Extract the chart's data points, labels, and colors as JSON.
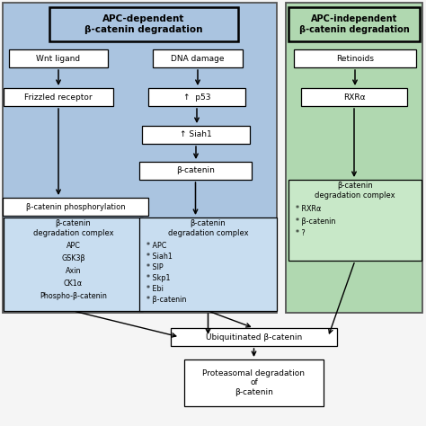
{
  "bg_color": "#f5f5f5",
  "blue_bg": "#aac4e0",
  "green_bg": "#b0d8b0",
  "white_box": "#ffffff",
  "blue_inner": "#c8ddf0",
  "green_inner": "#c8e8c8",
  "title_apc_dep": "APC-dependent\nβ-catenin degradation",
  "title_apc_indep": "APC-independent\nβ-catenin degradation",
  "wnt_ligand": "Wnt ligand",
  "frizzled": "Frizzled receptor",
  "dna_damage": "DNA damage",
  "p53": "↑  p53",
  "siah1": "↑ Siah1",
  "beta_cat_phosph": "β-catenin phosphorylation",
  "beta_cat_center": "β-catenin",
  "left_complex_title": "β-catenin\ndegradation complex",
  "center_complex_title": "β-catenin\ndegradation complex",
  "center_complex_items": [
    "* APC",
    "* Siah1",
    "* SIP",
    "* Skp1",
    "* Ebi",
    "* β-catenin"
  ],
  "left_complex_items": [
    "APC",
    "GSK3β",
    "Axin",
    "CK1α",
    "Phospho-β-catenin"
  ],
  "retinoids": "Retinoids",
  "rxra": "RXRα",
  "right_complex_title": "β-catenin\ndegradation complex",
  "right_complex_items": [
    "* RXRα",
    "* β-catenin",
    "* ?"
  ],
  "ubiquitinated": "Ubiquitinated β-catenin",
  "proteasomal": "Proteasomal degradation\nof\nβ-catenin"
}
